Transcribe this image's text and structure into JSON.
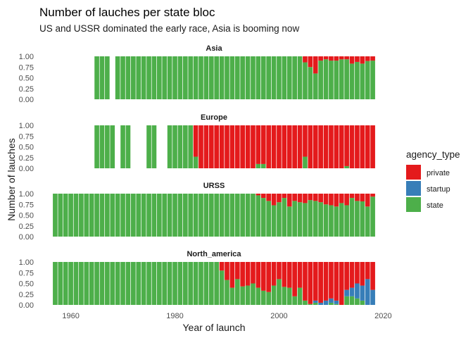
{
  "chart_data": {
    "type": "bar",
    "stacked": "fill",
    "title": "Number of lauches per state bloc",
    "subtitle": "US and USSR dominated the early race, Asia is booming now",
    "xlabel": "Year of launch",
    "ylabel": "Number of lauches",
    "xlim": [
      1956,
      2019
    ],
    "x_ticks": [
      1960,
      1980,
      2000,
      2020
    ],
    "ylim": [
      0,
      1
    ],
    "y_ticks": [
      "0.00",
      "0.25",
      "0.50",
      "0.75",
      "1.00"
    ],
    "grid": false,
    "legend_position": "right",
    "legend": {
      "title": "agency_type",
      "items": [
        {
          "label": "private",
          "color": "#e41a1c"
        },
        {
          "label": "startup",
          "color": "#377eb8"
        },
        {
          "label": "state",
          "color": "#4daf4a"
        }
      ]
    },
    "series_colors": {
      "private": "#e41a1c",
      "startup": "#377eb8",
      "state": "#4daf4a"
    },
    "facets": [
      {
        "label": "Asia",
        "years": [
          1965,
          1966,
          1967,
          1969,
          1970,
          1971,
          1972,
          1973,
          1974,
          1975,
          1976,
          1977,
          1978,
          1979,
          1980,
          1981,
          1982,
          1983,
          1984,
          1985,
          1986,
          1987,
          1988,
          1989,
          1990,
          1991,
          1992,
          1993,
          1994,
          1995,
          1996,
          1997,
          1998,
          1999,
          2000,
          2001,
          2002,
          2003,
          2004,
          2005,
          2006,
          2007,
          2008,
          2009,
          2010,
          2011,
          2012,
          2013,
          2014,
          2015,
          2016,
          2017,
          2018
        ],
        "private": [
          0,
          0,
          0,
          0,
          0,
          0,
          0,
          0,
          0,
          0,
          0,
          0,
          0,
          0,
          0,
          0,
          0,
          0,
          0,
          0,
          0,
          0,
          0,
          0,
          0,
          0,
          0,
          0,
          0,
          0,
          0,
          0,
          0,
          0,
          0,
          0,
          0,
          0,
          0,
          0.14,
          0.25,
          0.4,
          0.1,
          0.07,
          0.1,
          0.1,
          0.07,
          0.07,
          0.17,
          0.13,
          0.17,
          0.11,
          0.1
        ],
        "startup": [
          0,
          0,
          0,
          0,
          0,
          0,
          0,
          0,
          0,
          0,
          0,
          0,
          0,
          0,
          0,
          0,
          0,
          0,
          0,
          0,
          0,
          0,
          0,
          0,
          0,
          0,
          0,
          0,
          0,
          0,
          0,
          0,
          0,
          0,
          0,
          0,
          0,
          0,
          0,
          0,
          0,
          0,
          0,
          0,
          0,
          0,
          0,
          0,
          0,
          0,
          0,
          0,
          0
        ]
      },
      {
        "label": "Europe",
        "years": [
          1965,
          1966,
          1967,
          1968,
          1970,
          1971,
          1975,
          1976,
          1979,
          1980,
          1981,
          1982,
          1983,
          1984,
          1985,
          1986,
          1987,
          1988,
          1989,
          1990,
          1991,
          1992,
          1993,
          1994,
          1995,
          1996,
          1997,
          1998,
          1999,
          2000,
          2001,
          2002,
          2003,
          2004,
          2005,
          2006,
          2007,
          2008,
          2009,
          2010,
          2011,
          2012,
          2013,
          2014,
          2015,
          2016,
          2017,
          2018
        ],
        "private": [
          0,
          0,
          0,
          0,
          0,
          0,
          0,
          0,
          0,
          0,
          0,
          0,
          0,
          0.73,
          1,
          1,
          1,
          1,
          1,
          1,
          1,
          1,
          1,
          1,
          1,
          0.9,
          0.9,
          1,
          1,
          1,
          1,
          1,
          1,
          1,
          0.73,
          1,
          1,
          1,
          1,
          1,
          1,
          1,
          0.95,
          1,
          1,
          1,
          1,
          1
        ],
        "startup": [
          0,
          0,
          0,
          0,
          0,
          0,
          0,
          0,
          0,
          0,
          0,
          0,
          0,
          0,
          0,
          0,
          0,
          0,
          0,
          0,
          0,
          0,
          0,
          0,
          0,
          0,
          0,
          0,
          0,
          0,
          0,
          0,
          0,
          0,
          0,
          0,
          0,
          0,
          0,
          0,
          0,
          0,
          0,
          0,
          0,
          0,
          0,
          0
        ]
      },
      {
        "label": "URSS",
        "years": [
          1957,
          1958,
          1959,
          1960,
          1961,
          1962,
          1963,
          1964,
          1965,
          1966,
          1967,
          1968,
          1969,
          1970,
          1971,
          1972,
          1973,
          1974,
          1975,
          1976,
          1977,
          1978,
          1979,
          1980,
          1981,
          1982,
          1983,
          1984,
          1985,
          1986,
          1987,
          1988,
          1989,
          1990,
          1991,
          1992,
          1993,
          1994,
          1995,
          1996,
          1997,
          1998,
          1999,
          2000,
          2001,
          2002,
          2003,
          2004,
          2005,
          2006,
          2007,
          2008,
          2009,
          2010,
          2011,
          2012,
          2013,
          2014,
          2015,
          2016,
          2017,
          2018
        ],
        "private": [
          0,
          0,
          0,
          0,
          0,
          0,
          0,
          0,
          0,
          0,
          0,
          0,
          0,
          0,
          0,
          0,
          0,
          0,
          0,
          0,
          0,
          0,
          0,
          0,
          0,
          0,
          0,
          0,
          0,
          0,
          0,
          0,
          0,
          0,
          0,
          0,
          0,
          0,
          0,
          0.04,
          0.1,
          0.17,
          0.27,
          0.2,
          0.1,
          0.3,
          0.17,
          0.2,
          0.22,
          0.15,
          0.17,
          0.2,
          0.25,
          0.27,
          0.3,
          0.22,
          0.27,
          0.1,
          0.17,
          0.18,
          0.3,
          0.07
        ],
        "startup": [
          0,
          0,
          0,
          0,
          0,
          0,
          0,
          0,
          0,
          0,
          0,
          0,
          0,
          0,
          0,
          0,
          0,
          0,
          0,
          0,
          0,
          0,
          0,
          0,
          0,
          0,
          0,
          0,
          0,
          0,
          0,
          0,
          0,
          0,
          0,
          0,
          0,
          0,
          0,
          0,
          0,
          0,
          0,
          0,
          0,
          0,
          0,
          0,
          0,
          0,
          0,
          0,
          0,
          0,
          0,
          0,
          0,
          0,
          0,
          0,
          0,
          0
        ]
      },
      {
        "label": "North_america",
        "years": [
          1957,
          1958,
          1959,
          1960,
          1961,
          1962,
          1963,
          1964,
          1965,
          1966,
          1967,
          1968,
          1969,
          1970,
          1971,
          1972,
          1973,
          1974,
          1975,
          1976,
          1977,
          1978,
          1979,
          1980,
          1981,
          1982,
          1983,
          1984,
          1985,
          1986,
          1987,
          1988,
          1989,
          1990,
          1991,
          1992,
          1993,
          1994,
          1995,
          1996,
          1997,
          1998,
          1999,
          2000,
          2001,
          2002,
          2003,
          2004,
          2005,
          2006,
          2007,
          2008,
          2009,
          2010,
          2011,
          2012,
          2013,
          2014,
          2015,
          2016,
          2017,
          2018
        ],
        "private": [
          0,
          0,
          0,
          0,
          0,
          0,
          0,
          0,
          0,
          0,
          0,
          0,
          0,
          0,
          0,
          0,
          0,
          0,
          0,
          0,
          0,
          0,
          0,
          0,
          0,
          0,
          0,
          0,
          0,
          0,
          0,
          0,
          0.2,
          0.42,
          0.6,
          0.4,
          0.57,
          0.55,
          0.5,
          0.6,
          0.67,
          0.7,
          0.55,
          0.4,
          0.58,
          0.6,
          0.8,
          0.6,
          0.9,
          0.98,
          0.9,
          0.95,
          0.9,
          0.85,
          0.9,
          1,
          0.65,
          0.6,
          0.5,
          0.55,
          0.4,
          0.65
        ],
        "startup": [
          0,
          0,
          0,
          0,
          0,
          0,
          0,
          0,
          0,
          0,
          0,
          0,
          0,
          0,
          0,
          0,
          0,
          0,
          0,
          0,
          0,
          0,
          0,
          0,
          0,
          0,
          0,
          0,
          0,
          0,
          0,
          0,
          0,
          0,
          0,
          0,
          0,
          0,
          0,
          0,
          0,
          0,
          0,
          0,
          0,
          0,
          0,
          0,
          0,
          0,
          0.05,
          0.05,
          0.1,
          0.1,
          0.08,
          0,
          0.15,
          0.2,
          0.35,
          0.35,
          0.6,
          0.35
        ]
      }
    ]
  }
}
